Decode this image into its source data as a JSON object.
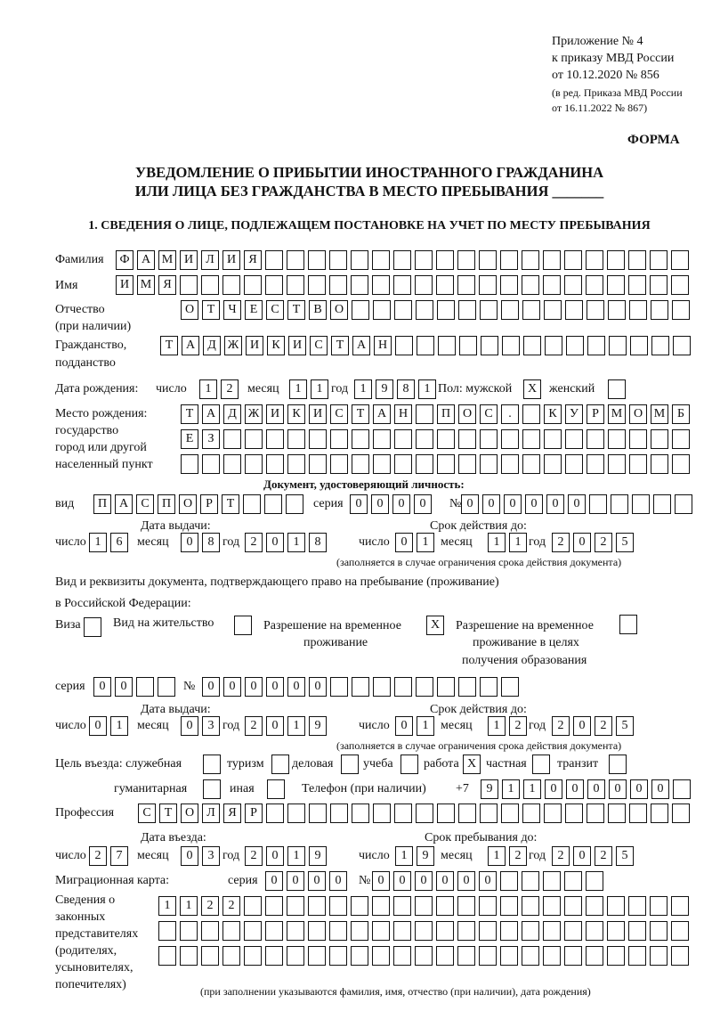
{
  "header": {
    "l1": "Приложение № 4",
    "l2": "к приказу МВД России",
    "l3": "от 10.12.2020 № 856",
    "l4": "(в ред. Приказа МВД России",
    "l5": "от 16.11.2022 № 867)",
    "forma": "ФОРМА"
  },
  "title": {
    "line1": "УВЕДОМЛЕНИЕ О ПРИБЫТИИ ИНОСТРАННОГО ГРАЖДАНИНА",
    "line2": "ИЛИ ЛИЦА БЕЗ ГРАЖДАНСТВА В МЕСТО ПРЕБЫВАНИЯ _______"
  },
  "section1": "1. СВЕДЕНИЯ О ЛИЦЕ, ПОДЛЕЖАЩЕМ ПОСТАНОВКЕ НА УЧЕТ ПО МЕСТУ ПРЕБЫВАНИЯ",
  "labels": {
    "surname": "Фамилия",
    "name": "Имя",
    "patronymic": "Отчество",
    "patronymic2": "(при наличии)",
    "citizenship": "Гражданство,",
    "citizenship2": "подданство",
    "birth_date": "Дата рождения:",
    "day": "число",
    "month": "месяц",
    "year": "год",
    "sex": "Пол: мужской",
    "female": "женский",
    "birthplace1": "Место рождения:",
    "birthplace2": "государство",
    "birthplace3": "город или другой",
    "birthplace4": "населенный пункт",
    "id_doc": "Документ, удостоверяющий личность:",
    "kind": "вид",
    "series": "серия",
    "number": "№",
    "issue_date": "Дата выдачи:",
    "valid_until": "Срок действия до:",
    "valid_note": "(заполняется в случае ограничения срока действия документа)",
    "right_doc1": "Вид и реквизиты документа, подтверждающего право на пребывание (проживание)",
    "right_doc2": "в Российской Федерации:",
    "visa": "Виза",
    "residence": "Вид на жительство",
    "trp1": "Разрешение на временное",
    "trp2": "проживание",
    "trpe1": "Разрешение на временное",
    "trpe2": "проживание в целях",
    "trpe3": "получения образования",
    "purpose": "Цель въезда: служебная",
    "tourism": "туризм",
    "business": "деловая",
    "study": "учеба",
    "work": "работа",
    "private": "частная",
    "transit": "транзит",
    "humanitarian": "гуманитарная",
    "other": "иная",
    "phone": "Телефон (при наличии)",
    "phone_prefix": "+7",
    "profession": "Профессия",
    "entry_date": "Дата въезда:",
    "stay_until": "Срок пребывания до:",
    "migration_card": "Миграционная карта:",
    "rep1": "Сведения о",
    "rep2": "законных",
    "rep3": "представителях",
    "rep4": "(родителях,",
    "rep5": "усыновителях,",
    "rep6": "попечителях)",
    "rep_note": "(при заполнении указываются фамилия, имя, отчество (при наличии), дата рождения)"
  },
  "person": {
    "surname": "ФАМИЛИЯ",
    "name": "ИМЯ",
    "patronymic": "ОТЧЕСТВО",
    "citizenship": "ТАДЖИКИСТАН",
    "birth_day": "12",
    "birth_month": "11",
    "birth_year": "1981",
    "sex_male": "X",
    "sex_female": "",
    "birthplace_1": "ТАДЖИКИСТАН ПОС. КУРМОМБ",
    "birthplace_2": "ЕЗ",
    "birthplace_3": ""
  },
  "id_document": {
    "kind": "ПАСПОРТ",
    "series": "0000",
    "number": "000000",
    "issue_day": "16",
    "issue_month": "08",
    "issue_year": "2018",
    "valid_day": "01",
    "valid_month": "11",
    "valid_year": "2025"
  },
  "residence_doc": {
    "visa": "",
    "residence_permit": "",
    "temp_residence": "X",
    "temp_residence_edu": "",
    "series": "00",
    "number": "000000",
    "issue_day": "01",
    "issue_month": "03",
    "issue_year": "2019",
    "valid_day": "01",
    "valid_month": "12",
    "valid_year": "2025"
  },
  "purpose": {
    "official": "",
    "tourism": "",
    "business": "",
    "study": "",
    "work": "X",
    "private": "",
    "transit": "",
    "humanitarian": "",
    "other": ""
  },
  "phone": "911000000",
  "profession": "СТОЛЯР",
  "entry": {
    "day": "27",
    "month": "03",
    "year": "2019",
    "stay_day": "19",
    "stay_month": "12",
    "stay_year": "2025"
  },
  "migration_card": {
    "series": "0000",
    "number": "000000"
  },
  "representatives": {
    "line1": "1122",
    "line2": "",
    "line3": ""
  }
}
